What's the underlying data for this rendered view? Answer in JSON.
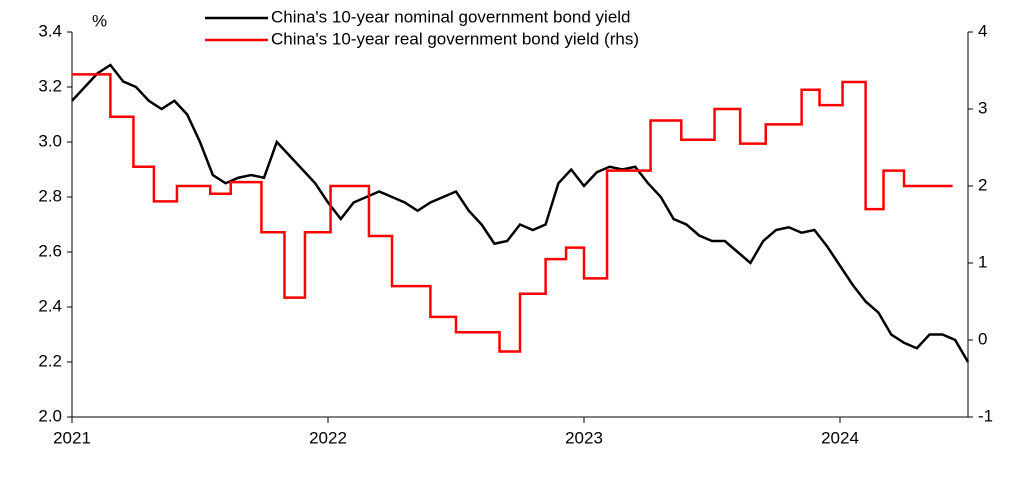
{
  "chart_data": {
    "type": "line",
    "y_unit_label": "%",
    "xlim": [
      2021,
      2024.5
    ],
    "xticks": [
      2021,
      2022,
      2023,
      2024
    ],
    "ylim": [
      2.0,
      3.4
    ],
    "yticks": [
      {
        "value": 2.0,
        "label": "2.0"
      },
      2.2,
      2.4,
      2.6,
      2.8,
      {
        "value": 3.0,
        "label": "3.0"
      },
      3.2,
      3.4
    ],
    "y2lim": [
      -1,
      4
    ],
    "y2ticks": [
      -1,
      0,
      1,
      2,
      3,
      4
    ],
    "legend": "top",
    "series": [
      {
        "name": "China's 10-year nominal government bond yield",
        "color": "#000000",
        "step": false,
        "x": [
          2021.0,
          2021.05,
          2021.1,
          2021.15,
          2021.2,
          2021.25,
          2021.3,
          2021.35,
          2021.4,
          2021.45,
          2021.5,
          2021.55,
          2021.6,
          2021.65,
          2021.7,
          2021.75,
          2021.8,
          2021.85,
          2021.9,
          2021.95,
          2022.0,
          2022.05,
          2022.1,
          2022.15,
          2022.2,
          2022.25,
          2022.3,
          2022.35,
          2022.4,
          2022.45,
          2022.5,
          2022.55,
          2022.6,
          2022.65,
          2022.7,
          2022.75,
          2022.8,
          2022.85,
          2022.9,
          2022.95,
          2023.0,
          2023.05,
          2023.1,
          2023.15,
          2023.2,
          2023.25,
          2023.3,
          2023.35,
          2023.4,
          2023.45,
          2023.5,
          2023.55,
          2023.6,
          2023.65,
          2023.7,
          2023.75,
          2023.8,
          2023.85,
          2023.9,
          2023.95,
          2024.0,
          2024.05,
          2024.1,
          2024.15,
          2024.2,
          2024.25,
          2024.3,
          2024.35,
          2024.4,
          2024.45,
          2024.5
        ],
        "values": [
          3.15,
          3.2,
          3.25,
          3.28,
          3.22,
          3.2,
          3.15,
          3.12,
          3.15,
          3.1,
          3.0,
          2.88,
          2.85,
          2.87,
          2.88,
          2.87,
          3.0,
          2.95,
          2.9,
          2.85,
          2.78,
          2.72,
          2.78,
          2.8,
          2.82,
          2.8,
          2.78,
          2.75,
          2.78,
          2.8,
          2.82,
          2.75,
          2.7,
          2.63,
          2.64,
          2.7,
          2.68,
          2.7,
          2.85,
          2.9,
          2.84,
          2.89,
          2.91,
          2.9,
          2.91,
          2.85,
          2.8,
          2.72,
          2.7,
          2.66,
          2.64,
          2.64,
          2.6,
          2.56,
          2.64,
          2.68,
          2.69,
          2.67,
          2.68,
          2.62,
          2.55,
          2.48,
          2.42,
          2.38,
          2.3,
          2.27,
          2.25,
          2.3,
          2.3,
          2.28,
          2.2
        ]
      },
      {
        "name": "China's 10-year real government bond yield (rhs)",
        "color": "#ff0000",
        "axis": "y2",
        "step": true,
        "x": [
          2021.0,
          2021.15,
          2021.24,
          2021.32,
          2021.41,
          2021.54,
          2021.62,
          2021.74,
          2021.83,
          2021.91,
          2022.01,
          2022.16,
          2022.25,
          2022.4,
          2022.5,
          2022.67,
          2022.75,
          2022.85,
          2022.93,
          2023.0,
          2023.09,
          2023.26,
          2023.38,
          2023.51,
          2023.61,
          2023.71,
          2023.85,
          2023.92,
          2024.01,
          2024.1,
          2024.17,
          2024.25,
          2024.44
        ],
        "values": [
          3.45,
          2.9,
          2.25,
          1.8,
          2.0,
          1.9,
          2.05,
          1.4,
          0.55,
          1.4,
          2.0,
          1.35,
          0.7,
          0.3,
          0.1,
          -0.15,
          0.6,
          1.05,
          1.2,
          0.8,
          2.2,
          2.85,
          2.6,
          3.0,
          2.55,
          2.8,
          3.25,
          3.05,
          3.35,
          1.7,
          2.2,
          2.0,
          2.0
        ]
      }
    ]
  }
}
